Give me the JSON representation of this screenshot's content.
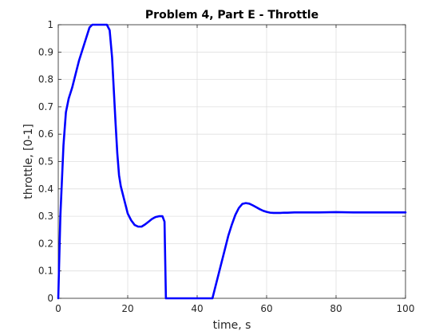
{
  "chart_data": {
    "type": "line",
    "title": "Problem 4, Part E - Throttle",
    "xlabel": "time, s",
    "ylabel": "throttle, [0-1]",
    "xlim": [
      0,
      100
    ],
    "ylim": [
      0,
      1
    ],
    "xticks": [
      0,
      20,
      40,
      60,
      80,
      100
    ],
    "yticks": [
      0,
      0.1,
      0.2,
      0.3,
      0.4,
      0.5,
      0.6,
      0.7,
      0.8,
      0.9,
      1
    ],
    "xtick_labels": [
      "0",
      "20",
      "40",
      "60",
      "80",
      "100"
    ],
    "ytick_labels": [
      "0",
      "0.1",
      "0.2",
      "0.3",
      "0.4",
      "0.5",
      "0.6",
      "0.7",
      "0.8",
      "0.9",
      "1"
    ],
    "grid": true,
    "series": [
      {
        "color": "#0000ff",
        "x": [
          0,
          0.6,
          1.5,
          2.2,
          3,
          4,
          5,
          6,
          7,
          8,
          9,
          9.8,
          11,
          12,
          13,
          14,
          14.8,
          15.5,
          16,
          16.5,
          17,
          17.5,
          18,
          19,
          20,
          21,
          22,
          23,
          24,
          25,
          26,
          27,
          28,
          29,
          30,
          30.6,
          31,
          31.5,
          35,
          40,
          44,
          44.4,
          45,
          46,
          47,
          48,
          49,
          50,
          51,
          52,
          53,
          54,
          55,
          56,
          57,
          58,
          59,
          60,
          61,
          62,
          63,
          64,
          65,
          66,
          68,
          70,
          75,
          80,
          85,
          90,
          95,
          100
        ],
        "y": [
          0,
          0.3,
          0.56,
          0.68,
          0.73,
          0.77,
          0.82,
          0.87,
          0.91,
          0.95,
          0.99,
          1,
          1,
          1,
          1,
          1,
          0.98,
          0.88,
          0.76,
          0.64,
          0.53,
          0.45,
          0.41,
          0.36,
          0.31,
          0.285,
          0.268,
          0.262,
          0.262,
          0.27,
          0.28,
          0.29,
          0.297,
          0.3,
          0.3,
          0.28,
          0,
          0,
          0,
          0,
          0,
          0,
          0.03,
          0.08,
          0.13,
          0.18,
          0.23,
          0.27,
          0.305,
          0.33,
          0.345,
          0.348,
          0.346,
          0.34,
          0.333,
          0.326,
          0.32,
          0.316,
          0.313,
          0.312,
          0.312,
          0.312,
          0.313,
          0.313,
          0.314,
          0.314,
          0.314,
          0.315,
          0.314,
          0.314,
          0.314,
          0.314
        ]
      }
    ]
  }
}
